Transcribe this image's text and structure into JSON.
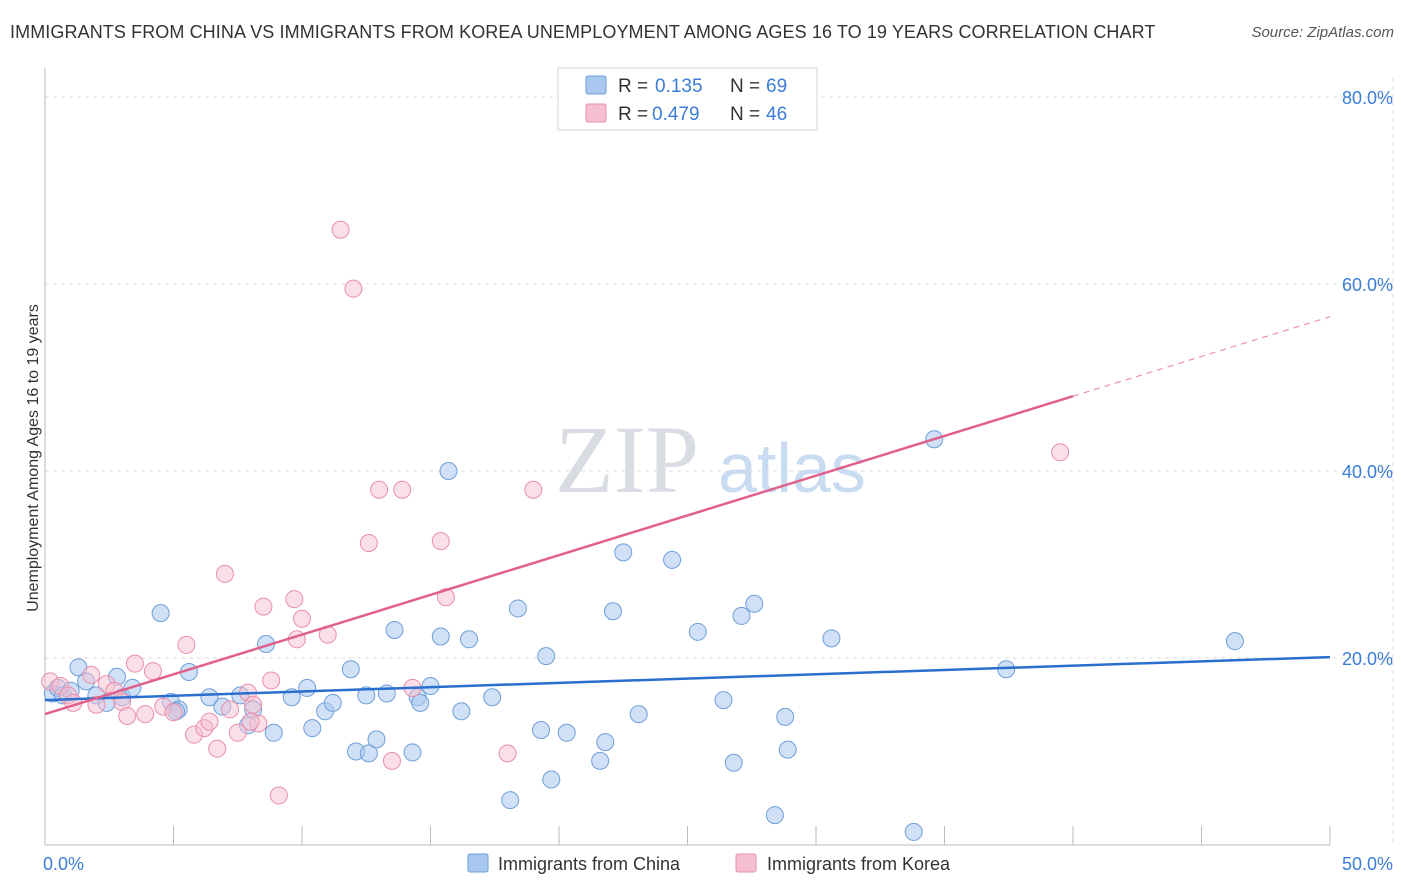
{
  "header": {
    "title": "IMMIGRANTS FROM CHINA VS IMMIGRANTS FROM KOREA UNEMPLOYMENT AMONG AGES 16 TO 19 YEARS CORRELATION CHART",
    "source": "Source: ZipAtlas.com"
  },
  "watermark": {
    "zip": "ZIP",
    "atlas": "atlas"
  },
  "colors": {
    "china_fill": "#a9c8f0",
    "china_stroke": "#6f9fd8",
    "china_line": "#2b6fce",
    "korea_fill": "#f6bfd0",
    "korea_stroke": "#e88fad",
    "korea_line": "#e0608c",
    "value_text": "#3b7dd8",
    "grid": "#dddddd"
  },
  "legend": {
    "rows": [
      {
        "r_label": "R =",
        "r_value": "0.135",
        "n_label": "N =",
        "n_value": "69"
      },
      {
        "r_label": "R =",
        "r_value": "0.479",
        "n_label": "N =",
        "n_value": "46"
      }
    ]
  },
  "chart_data": {
    "type": "scatter",
    "title": "IMMIGRANTS FROM CHINA VS IMMIGRANTS FROM KOREA UNEMPLOYMENT AMONG AGES 16 TO 19 YEARS CORRELATION CHART",
    "xlabel": "",
    "ylabel": "Unemployment Among Ages 16 to 19 years",
    "xlim": [
      0,
      50
    ],
    "ylim": [
      0,
      82
    ],
    "x_tick_labels": [
      "0.0%",
      "50.0%"
    ],
    "y_ticks": [
      20,
      40,
      60,
      80
    ],
    "y_tick_labels": [
      "20.0%",
      "40.0%",
      "60.0%",
      "80.0%"
    ],
    "grid": true,
    "legend_position": "top-center",
    "series": [
      {
        "name": "Immigrants from China",
        "r": 0.135,
        "n": 69,
        "trend": {
          "x": [
            0,
            50
          ],
          "y": [
            15.5,
            20.1
          ],
          "dashed_from": null
        },
        "points": [
          [
            0.3,
            16.2
          ],
          [
            0.5,
            16.8
          ],
          [
            0.7,
            16.0
          ],
          [
            1.0,
            16.5
          ],
          [
            1.3,
            19.0
          ],
          [
            1.6,
            17.5
          ],
          [
            2.0,
            16.0
          ],
          [
            2.4,
            15.2
          ],
          [
            2.8,
            18.0
          ],
          [
            3.0,
            15.8
          ],
          [
            3.4,
            16.8
          ],
          [
            4.5,
            24.8
          ],
          [
            4.9,
            15.3
          ],
          [
            5.2,
            14.5
          ],
          [
            5.6,
            18.5
          ],
          [
            6.4,
            15.8
          ],
          [
            6.9,
            14.8
          ],
          [
            7.6,
            16.0
          ],
          [
            7.9,
            12.8
          ],
          [
            8.1,
            14.5
          ],
          [
            8.6,
            21.5
          ],
          [
            8.9,
            12.0
          ],
          [
            9.6,
            15.8
          ],
          [
            10.2,
            16.8
          ],
          [
            10.4,
            12.5
          ],
          [
            10.9,
            14.3
          ],
          [
            11.2,
            15.2
          ],
          [
            11.9,
            18.8
          ],
          [
            12.1,
            10.0
          ],
          [
            12.5,
            16.0
          ],
          [
            12.6,
            9.8
          ],
          [
            12.9,
            11.3
          ],
          [
            13.3,
            16.2
          ],
          [
            13.6,
            23.0
          ],
          [
            14.3,
            9.9
          ],
          [
            14.5,
            15.8
          ],
          [
            14.6,
            15.2
          ],
          [
            15.0,
            17.0
          ],
          [
            15.4,
            22.3
          ],
          [
            15.7,
            40.0
          ],
          [
            16.2,
            14.3
          ],
          [
            16.5,
            22.0
          ],
          [
            17.4,
            15.8
          ],
          [
            18.1,
            4.8
          ],
          [
            18.4,
            25.3
          ],
          [
            19.3,
            12.3
          ],
          [
            19.5,
            20.2
          ],
          [
            19.7,
            7.0
          ],
          [
            20.3,
            12.0
          ],
          [
            21.6,
            9.0
          ],
          [
            21.8,
            11.0
          ],
          [
            22.1,
            25.0
          ],
          [
            22.5,
            31.3
          ],
          [
            23.1,
            14.0
          ],
          [
            24.4,
            30.5
          ],
          [
            25.4,
            22.8
          ],
          [
            26.4,
            15.5
          ],
          [
            26.8,
            8.8
          ],
          [
            27.1,
            24.5
          ],
          [
            27.6,
            25.8
          ],
          [
            28.4,
            3.2
          ],
          [
            28.8,
            13.7
          ],
          [
            28.9,
            10.2
          ],
          [
            30.6,
            22.1
          ],
          [
            33.8,
            1.4
          ],
          [
            34.6,
            43.4
          ],
          [
            37.4,
            18.8
          ],
          [
            46.3,
            21.8
          ],
          [
            5.1,
            14.3
          ]
        ]
      },
      {
        "name": "Immigrants from Korea",
        "r": 0.479,
        "n": 46,
        "trend": {
          "x": [
            0,
            40
          ],
          "y": [
            14.0,
            48.0
          ],
          "dashed_to": [
            50,
            56.5
          ]
        },
        "points": [
          [
            0.2,
            17.5
          ],
          [
            0.6,
            17.0
          ],
          [
            0.9,
            16.0
          ],
          [
            1.1,
            15.2
          ],
          [
            1.8,
            18.2
          ],
          [
            2.0,
            15.0
          ],
          [
            2.4,
            17.2
          ],
          [
            2.7,
            16.5
          ],
          [
            3.0,
            15.3
          ],
          [
            3.2,
            13.8
          ],
          [
            3.5,
            19.4
          ],
          [
            3.9,
            14.0
          ],
          [
            4.2,
            18.6
          ],
          [
            4.6,
            14.8
          ],
          [
            5.0,
            14.2
          ],
          [
            5.5,
            21.4
          ],
          [
            5.8,
            11.8
          ],
          [
            6.2,
            12.5
          ],
          [
            6.4,
            13.2
          ],
          [
            6.7,
            10.3
          ],
          [
            7.0,
            29.0
          ],
          [
            7.2,
            14.5
          ],
          [
            7.5,
            12.0
          ],
          [
            7.9,
            16.3
          ],
          [
            8.1,
            15.0
          ],
          [
            8.3,
            13.0
          ],
          [
            8.5,
            25.5
          ],
          [
            8.8,
            17.6
          ],
          [
            9.1,
            5.3
          ],
          [
            9.7,
            26.3
          ],
          [
            9.8,
            22.0
          ],
          [
            10.0,
            24.2
          ],
          [
            11.0,
            22.5
          ],
          [
            11.5,
            65.8
          ],
          [
            12.0,
            59.5
          ],
          [
            12.6,
            32.3
          ],
          [
            13.0,
            38.0
          ],
          [
            13.5,
            9.0
          ],
          [
            13.9,
            38.0
          ],
          [
            14.3,
            16.8
          ],
          [
            15.4,
            32.5
          ],
          [
            15.6,
            26.5
          ],
          [
            18.0,
            9.8
          ],
          [
            19.0,
            38.0
          ],
          [
            39.5,
            42.0
          ],
          [
            8.0,
            13.2
          ]
        ]
      }
    ]
  },
  "bottom_legend": {
    "china_label": "Immigrants from China",
    "korea_label": "Immigrants from Korea"
  }
}
